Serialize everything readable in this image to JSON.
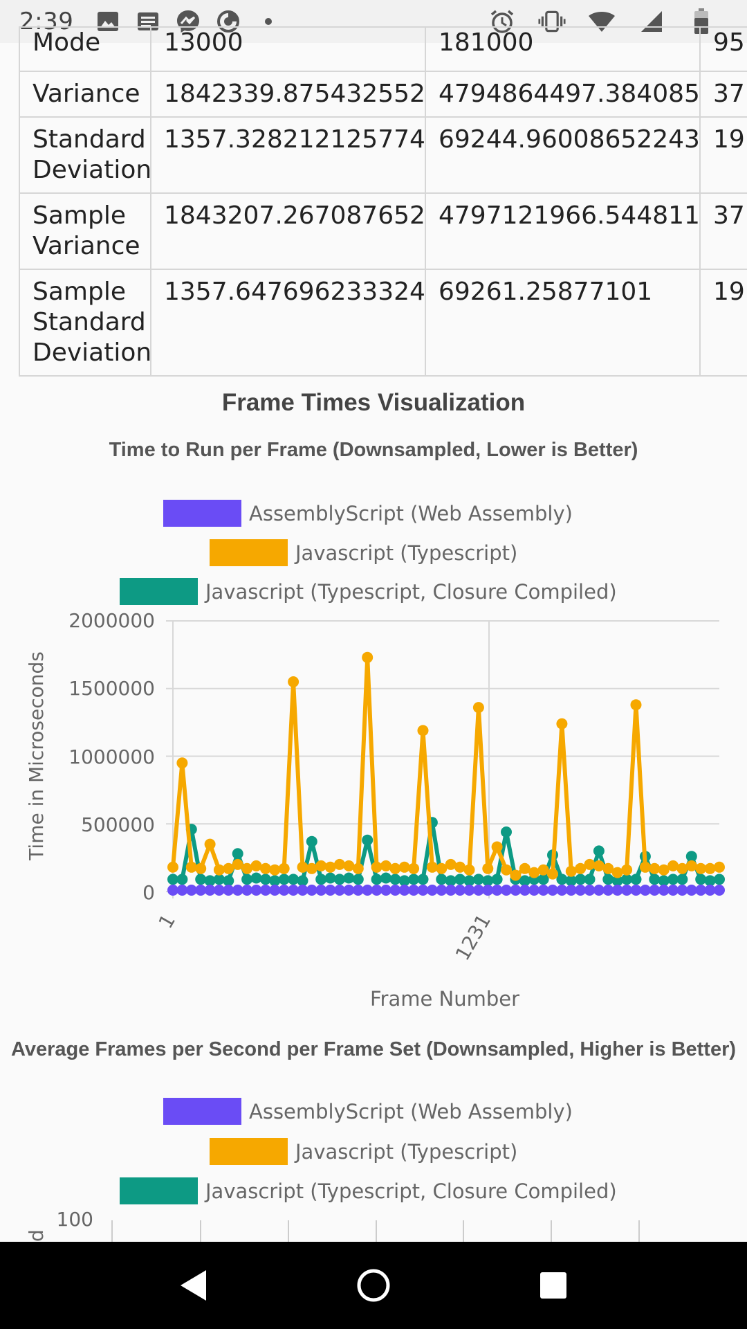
{
  "status_bar": {
    "time": "2:39",
    "left_icons": [
      "image-icon",
      "news-icon",
      "messenger-icon",
      "data-saver-icon",
      "dot-icon"
    ],
    "right_icons": [
      "alarm-icon",
      "vibrate-icon",
      "wifi-icon",
      "signal-icon",
      "battery-icon"
    ]
  },
  "stats_table": {
    "rows": [
      {
        "label": "Mode",
        "col1": "13000",
        "col2": "181000",
        "col3": "95"
      },
      {
        "label": "Variance",
        "col1": "1842339.8754325523",
        "col2": "4794864497.384085",
        "col3": "37"
      },
      {
        "label": "Standard Deviation",
        "col1": "1357.3282121257748",
        "col2": "69244.96008652243",
        "col3": "19"
      },
      {
        "label": "Sample Variance",
        "col1": "1843207.2670876523",
        "col2": "4797121966.544811",
        "col3": "37"
      },
      {
        "label": "Sample Standard Deviation",
        "col1": "1357.647696233324",
        "col2": "69261.25877101",
        "col3": "19"
      }
    ]
  },
  "section_title": "Frame Times Visualization",
  "chart_data": [
    {
      "type": "line",
      "title": "Time to Run per Frame (Downsampled, Lower is Better)",
      "xlabel": "Frame Number",
      "ylabel": "Time in Microseconds",
      "ylim": [
        0,
        2000000
      ],
      "yticks": [
        "0",
        "500000",
        "1000000",
        "1500000",
        "2000000"
      ],
      "xtick_labels": [
        "1",
        "1231"
      ],
      "grid": true,
      "legend_position": "top",
      "series": [
        {
          "name": "AssemblyScript (Web Assembly)",
          "color": "#6a4cf5",
          "values": [
            10000,
            10000,
            10000,
            10000,
            10000,
            10000,
            10000,
            10000,
            10000,
            10000,
            10000,
            10000,
            10000,
            10000,
            10000,
            10000,
            10000,
            10000,
            10000,
            10000,
            10000,
            10000,
            10000,
            10000,
            10000,
            10000,
            10000,
            10000,
            10000,
            10000,
            10000,
            10000,
            10000,
            10000,
            10000,
            10000,
            10000,
            10000,
            10000,
            10000,
            10000,
            10000,
            10000,
            10000,
            10000,
            10000,
            10000,
            10000,
            10000,
            10000,
            10000,
            10000,
            10000,
            10000,
            10000,
            10000,
            10000,
            10000,
            10000,
            10000
          ]
        },
        {
          "name": "Javascript (Typescript)",
          "color": "#f6a800",
          "values": [
            180000,
            950000,
            180000,
            170000,
            350000,
            160000,
            170000,
            200000,
            170000,
            190000,
            170000,
            160000,
            170000,
            1550000,
            180000,
            170000,
            190000,
            180000,
            200000,
            190000,
            170000,
            1730000,
            180000,
            190000,
            170000,
            180000,
            170000,
            1190000,
            180000,
            170000,
            200000,
            180000,
            160000,
            1360000,
            170000,
            330000,
            160000,
            120000,
            170000,
            140000,
            160000,
            130000,
            1240000,
            150000,
            170000,
            200000,
            190000,
            170000,
            140000,
            160000,
            1380000,
            180000,
            170000,
            160000,
            190000,
            170000,
            190000,
            170000,
            170000,
            180000
          ]
        },
        {
          "name": "Javascript (Typescript, Closure Compiled)",
          "color": "#0d9a84",
          "values": [
            90000,
            90000,
            460000,
            90000,
            80000,
            90000,
            80000,
            280000,
            90000,
            100000,
            90000,
            80000,
            90000,
            90000,
            80000,
            370000,
            90000,
            100000,
            90000,
            100000,
            90000,
            380000,
            90000,
            100000,
            90000,
            80000,
            90000,
            90000,
            510000,
            90000,
            80000,
            90000,
            80000,
            90000,
            80000,
            90000,
            440000,
            90000,
            80000,
            90000,
            90000,
            270000,
            90000,
            80000,
            90000,
            90000,
            300000,
            90000,
            80000,
            90000,
            90000,
            260000,
            90000,
            80000,
            90000,
            90000,
            260000,
            90000,
            80000,
            90000
          ]
        }
      ]
    },
    {
      "type": "line",
      "title": "Average Frames per Second per Frame Set (Downsampled, Higher is Better)",
      "legend_position": "top",
      "yticks": [
        "100"
      ],
      "series": [
        {
          "name": "AssemblyScript (Web Assembly)",
          "color": "#6a4cf5"
        },
        {
          "name": "Javascript (Typescript)",
          "color": "#f6a800"
        },
        {
          "name": "Javascript (Typescript, Closure Compiled)",
          "color": "#0d9a84"
        }
      ]
    }
  ],
  "chart2_ylabel_partial": "d",
  "nav_bar": {
    "buttons": [
      "back-icon",
      "home-icon",
      "recents-icon"
    ]
  }
}
